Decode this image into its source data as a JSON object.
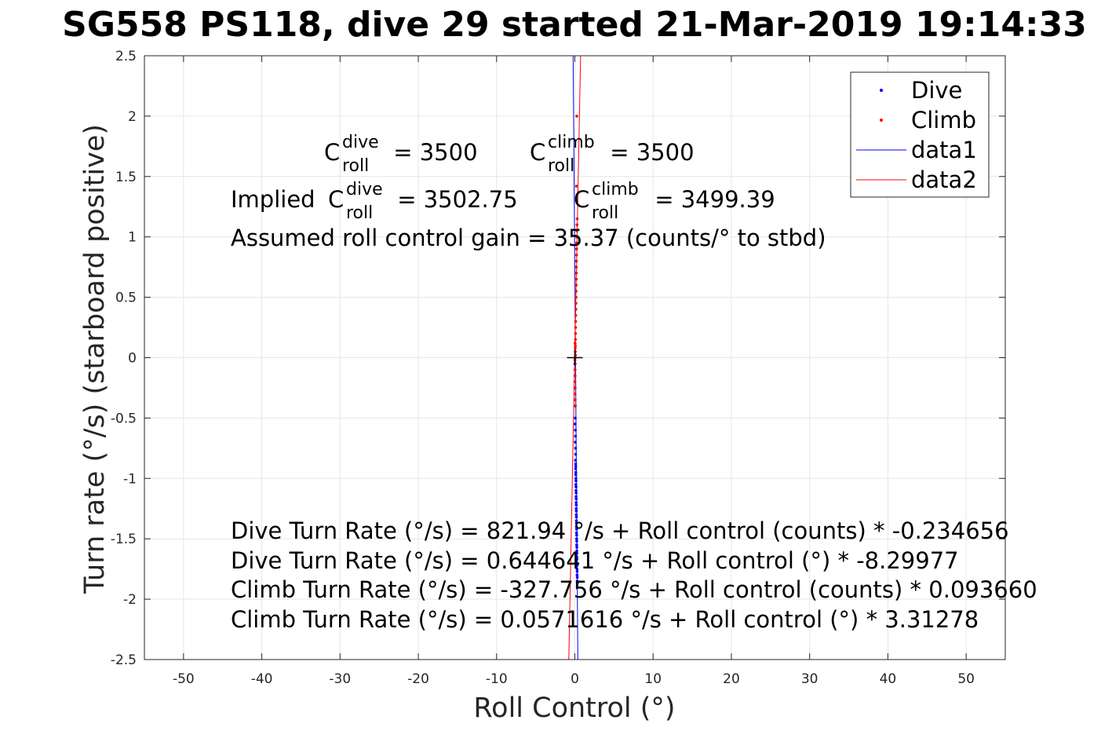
{
  "chart_data": {
    "type": "scatter",
    "title": "SG558 PS118, dive 29 started 21-Mar-2019 19:14:33",
    "xlabel": "Roll Control (°)",
    "ylabel": "Turn rate (°/s) (starboard positive)",
    "xlim": [
      -55,
      55
    ],
    "ylim": [
      -2.5,
      2.5
    ],
    "xticks": [
      -50,
      -40,
      -30,
      -20,
      -10,
      0,
      10,
      20,
      30,
      40,
      50
    ],
    "xtick_labels": [
      "-50",
      "-40",
      "-30",
      "-20",
      "-10",
      "0",
      "10",
      "20",
      "30",
      "40",
      "50"
    ],
    "yticks": [
      -2.5,
      -2,
      -1.5,
      -1,
      -0.5,
      0,
      0.5,
      1,
      1.5,
      2,
      2.5
    ],
    "ytick_labels": [
      "-2.5",
      "-2",
      "-1.5",
      "-1",
      "-0.5",
      "0",
      "0.5",
      "1",
      "1.5",
      "2",
      "2.5"
    ],
    "grid": true,
    "legend_position": "top-right",
    "crosshair": {
      "x": 0,
      "y": 0
    },
    "series": [
      {
        "name": "Dive",
        "kind": "points",
        "color": "#0000ff",
        "x": [
          0.0,
          0.02,
          0.03,
          0.05,
          0.06,
          0.04,
          0.07,
          0.08,
          0.05,
          0.09,
          0.1,
          0.08,
          0.11,
          0.12,
          0.1,
          0.13,
          0.12,
          0.14,
          0.15,
          0.13,
          0.16,
          0.15,
          0.17,
          0.16,
          0.18,
          0.17,
          0.19,
          0.18,
          0.2,
          0.19,
          0.21,
          0.2,
          0.22,
          0.21,
          0.23,
          0.22,
          0.24,
          0.23,
          0.25,
          0.24,
          0.26,
          0.25,
          0.27,
          0.26,
          0.28,
          0.27,
          0.29,
          0.28,
          0.3,
          0.29,
          0.31,
          0.3,
          0.32,
          0.31,
          0.2
        ],
        "y": [
          -0.05,
          -0.15,
          -0.25,
          -0.4,
          -0.5,
          -0.55,
          -0.6,
          -0.65,
          -0.7,
          -0.75,
          -0.8,
          -0.85,
          -0.88,
          -0.9,
          -0.92,
          -0.95,
          -0.97,
          -1.0,
          -1.02,
          -1.05,
          -1.07,
          -1.1,
          -1.12,
          -1.15,
          -1.17,
          -1.2,
          -1.22,
          -1.25,
          -1.27,
          -1.3,
          -1.32,
          -1.35,
          -1.37,
          -1.4,
          -1.42,
          -1.45,
          -1.47,
          -1.5,
          -1.52,
          -1.55,
          -1.57,
          -1.6,
          -1.62,
          -1.65,
          -1.67,
          -1.7,
          -1.72,
          -1.75,
          -1.77,
          -1.8,
          -1.82,
          -1.85,
          -1.87,
          -1.9,
          1.3
        ]
      },
      {
        "name": "Climb",
        "kind": "points",
        "color": "#ff0000",
        "x": [
          0.3,
          0.28,
          0.26,
          0.25,
          0.24,
          0.23,
          0.22,
          0.21,
          0.2,
          0.19,
          0.18,
          0.17,
          0.16,
          0.15,
          0.14,
          0.13,
          0.12,
          0.11,
          0.1,
          0.09,
          0.08,
          0.07,
          0.06,
          0.05,
          0.04,
          0.03,
          0.02,
          0.01,
          0.0,
          0.02,
          0.04,
          0.06,
          0.08,
          0.05,
          0.03,
          0.01,
          0.25,
          0.2
        ],
        "y": [
          1.15,
          1.1,
          1.05,
          1.0,
          0.95,
          0.9,
          0.85,
          0.8,
          0.75,
          0.7,
          0.65,
          0.6,
          0.55,
          0.5,
          0.45,
          0.4,
          0.35,
          0.3,
          0.25,
          0.2,
          0.15,
          0.1,
          0.05,
          0.0,
          -0.05,
          -0.1,
          -0.15,
          -0.2,
          -0.25,
          -0.3,
          -0.35,
          -0.4,
          0.02,
          0.08,
          0.12,
          -0.02,
          2.0,
          1.42
        ]
      },
      {
        "name": "data1",
        "kind": "line",
        "color": "#0000ff",
        "x": [
          0.3851,
          -0.2174
        ],
        "y": [
          -2.5,
          2.5
        ]
      },
      {
        "name": "data2",
        "kind": "line",
        "color": "#ff0000",
        "x": [
          -0.7719,
          0.7374
        ],
        "y": [
          -2.5,
          2.5
        ]
      }
    ],
    "annotations": {
      "c_roll_dive": {
        "base": "C",
        "sup": "dive",
        "sub": "roll",
        "rest": " = 3500"
      },
      "c_roll_climb": {
        "base": "C",
        "sup": "climb",
        "sub": "roll",
        "rest": " = 3500"
      },
      "implied_prefix": "Implied ",
      "implied_dive": {
        "base": "C",
        "sup": "dive",
        "sub": "roll",
        "rest": " = 3502.75"
      },
      "implied_climb": {
        "base": "C",
        "sup": "climb",
        "sub": "roll",
        "rest": " = 3499.39"
      },
      "gain": "Assumed roll control gain = 35.37 (counts/° to stbd)",
      "fit_lines": [
        "Dive Turn Rate (°/s) = 821.94 °/s + Roll control (counts) * -0.234656",
        "Dive Turn Rate (°/s) = 0.644641 °/s + Roll control (°) * -8.29977",
        "Climb Turn Rate (°/s) = -327.756 °/s + Roll control (counts) * 0.093660",
        "Climb Turn Rate (°/s) = 0.0571616 °/s + Roll control (°) * 3.31278"
      ]
    }
  }
}
